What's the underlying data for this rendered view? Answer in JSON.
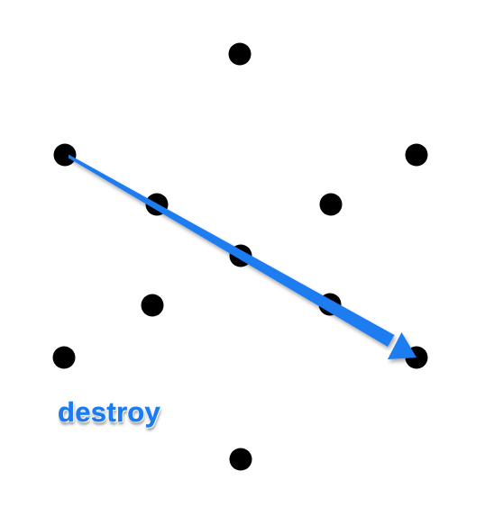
{
  "gesture": {
    "label": "destroy",
    "color": "#1d7bf0",
    "from_dot": "left-upper",
    "to_dot": "right-lower"
  },
  "dot_color": "#000000",
  "dots": [
    "top",
    "left-upper",
    "right-upper",
    "inner-upper-left",
    "inner-upper-right",
    "center",
    "inner-lower-left",
    "inner-lower-right",
    "left-lower",
    "right-lower",
    "bottom"
  ]
}
